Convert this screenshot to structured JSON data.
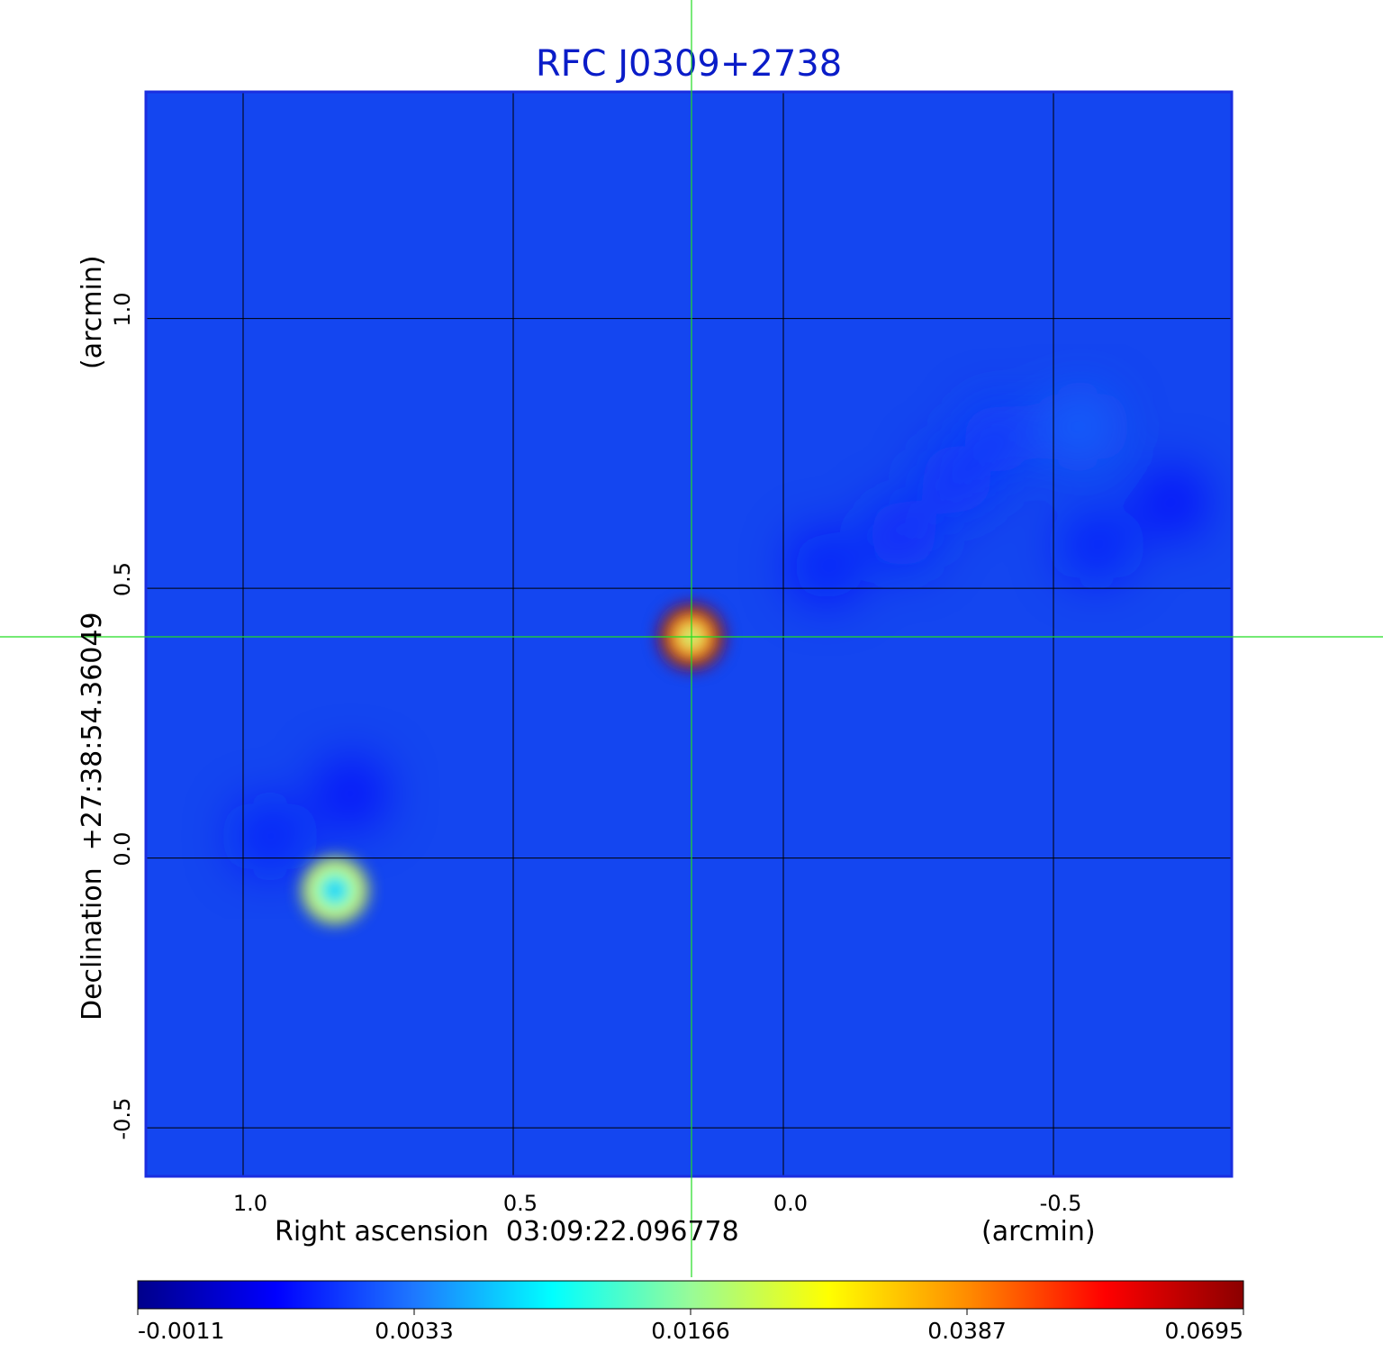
{
  "chart_data": {
    "type": "heatmap",
    "title": "RFC J0309+2738",
    "xlabel": "Right ascension  03:09:22.096778",
    "xunit": "(arcmin)",
    "ylabel": "Declination  +27:38:54.36049",
    "yunit": "(arcmin)",
    "xlim": [
      1.18,
      -0.83
    ],
    "ylim": [
      -0.59,
      1.42
    ],
    "x_ticks": [
      {
        "value": 1.0,
        "label": "1.0"
      },
      {
        "value": 0.5,
        "label": "0.5"
      },
      {
        "value": 0.0,
        "label": "0.0"
      },
      {
        "value": -0.5,
        "label": "-0.5"
      }
    ],
    "y_ticks": [
      {
        "value": 1.0,
        "label": "1.0"
      },
      {
        "value": 0.5,
        "label": "0.5"
      },
      {
        "value": 0.0,
        "label": "0.0"
      },
      {
        "value": -0.5,
        "label": "-0.5"
      }
    ],
    "grid": true,
    "crosshair": {
      "x": 0.17,
      "y": 0.41
    },
    "colormap": [
      "#00008b",
      "#0000ff",
      "#1e78ff",
      "#00ffff",
      "#98fb98",
      "#ffff00",
      "#ff8c00",
      "#ff0000",
      "#8b0000"
    ],
    "colorbar_ticks": [
      {
        "value": -0.0011,
        "label": "-0.0011"
      },
      {
        "value": 0.0033,
        "label": "0.0033"
      },
      {
        "value": 0.0166,
        "label": "0.0166"
      },
      {
        "value": 0.0387,
        "label": "0.0387"
      },
      {
        "value": 0.0695,
        "label": "0.0695"
      }
    ],
    "sources": [
      {
        "x": 0.17,
        "y": 0.41,
        "peak": 0.0695
      },
      {
        "x": 0.83,
        "y": -0.06,
        "peak": 0.025
      }
    ],
    "diffuse_emission": [
      {
        "x": -0.55,
        "y": 0.8,
        "level": 0.003
      },
      {
        "x": -0.4,
        "y": 0.78,
        "level": 0.0022
      },
      {
        "x": -0.32,
        "y": 0.7,
        "level": 0.002
      },
      {
        "x": -0.22,
        "y": 0.6,
        "level": 0.0018
      },
      {
        "x": -0.08,
        "y": 0.54,
        "level": 0.0014
      },
      {
        "x": -0.58,
        "y": 0.58,
        "level": 0.0016
      },
      {
        "x": -0.72,
        "y": 0.66,
        "level": 0.0012
      },
      {
        "x": 0.95,
        "y": 0.04,
        "level": 0.0016
      },
      {
        "x": 0.8,
        "y": 0.12,
        "level": 0.0012
      }
    ],
    "colors": {
      "title": "#0a1cc8",
      "axes_frame": "#1a2ee0",
      "grid": "#000000",
      "crosshair": "#22dd22",
      "text": "#000000"
    }
  }
}
